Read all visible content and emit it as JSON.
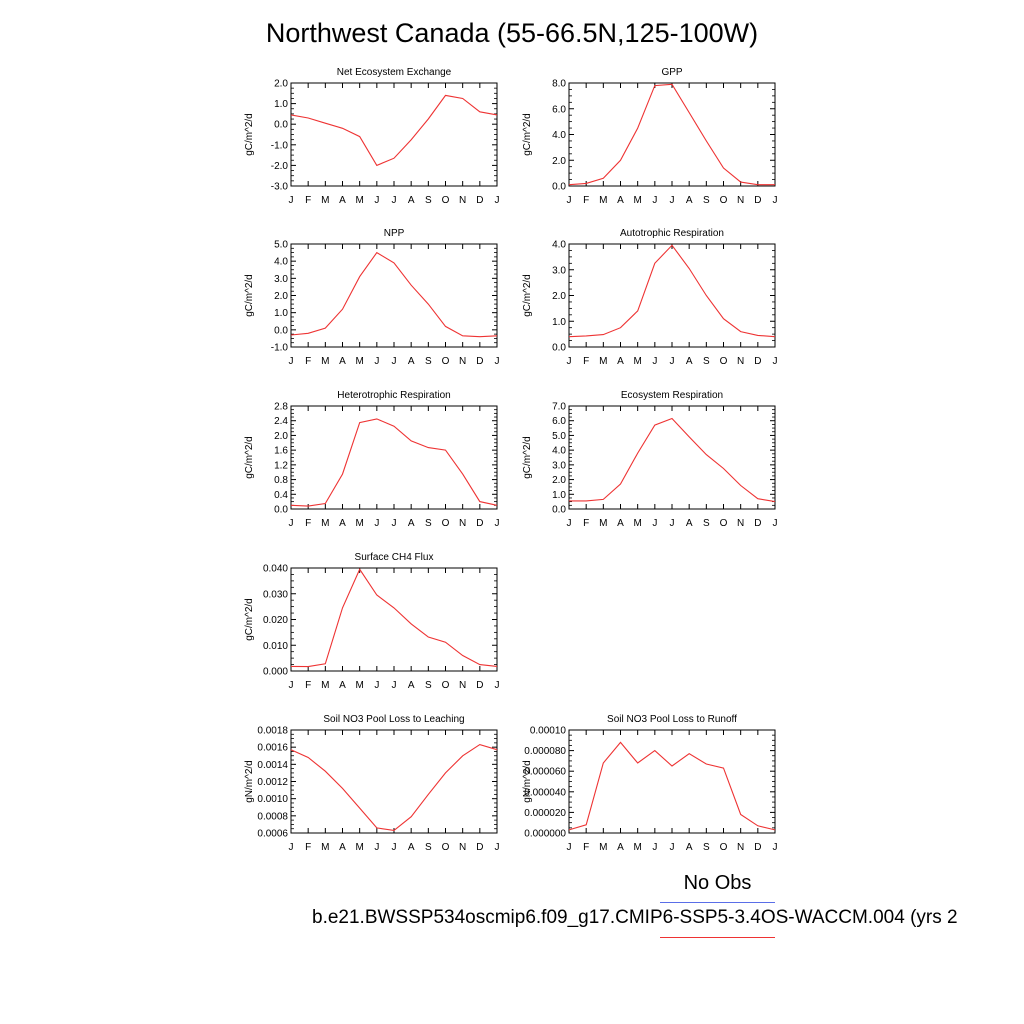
{
  "title": "Northwest Canada (55-66.5N,125-100W)",
  "legend": {
    "label": "No Obs",
    "obs_color": "#5a6ee8",
    "model_color": "#ee3333"
  },
  "case_label": "b.e21.BWSSP534oscmip6.f09_g17.CMIP6-SSP5-3.4OS-WACCM.004 (yrs 2",
  "months": [
    "J",
    "F",
    "M",
    "A",
    "M",
    "J",
    "J",
    "A",
    "S",
    "O",
    "N",
    "D",
    "J"
  ],
  "chart_data": [
    {
      "type": "line",
      "title": "Net Ecosystem Exchange",
      "ylabel": "gC/m^2/d",
      "ylim": [
        -3.0,
        2.0
      ],
      "yticks": [
        2.0,
        1.0,
        0.0,
        -1.0,
        -2.0,
        -3.0
      ],
      "yticklabels": [
        "2.0",
        "1.0",
        "0.0",
        "-1.0",
        "-2.0",
        "-3.0"
      ],
      "values": [
        0.45,
        0.3,
        0.05,
        -0.2,
        -0.6,
        -2.0,
        -1.65,
        -0.75,
        0.25,
        1.4,
        1.25,
        0.6,
        0.45
      ]
    },
    {
      "type": "line",
      "title": "GPP",
      "ylabel": "gC/m^2/d",
      "ylim": [
        0.0,
        8.0
      ],
      "yticks": [
        8.0,
        6.0,
        4.0,
        2.0,
        0.0
      ],
      "yticklabels": [
        "8.0",
        "6.0",
        "4.0",
        "2.0",
        "0.0"
      ],
      "values": [
        0.1,
        0.2,
        0.6,
        2.0,
        4.5,
        7.8,
        7.9,
        5.7,
        3.5,
        1.4,
        0.3,
        0.1,
        0.1
      ]
    },
    {
      "type": "line",
      "title": "NPP",
      "ylabel": "gC/m^2/d",
      "ylim": [
        -1.0,
        5.0
      ],
      "yticks": [
        5.0,
        4.0,
        3.0,
        2.0,
        1.0,
        0.0,
        -1.0
      ],
      "yticklabels": [
        "5.0",
        "4.0",
        "3.0",
        "2.0",
        "1.0",
        "0.0",
        "-1.0"
      ],
      "values": [
        -0.3,
        -0.2,
        0.1,
        1.2,
        3.1,
        4.5,
        3.9,
        2.6,
        1.5,
        0.2,
        -0.35,
        -0.4,
        -0.35
      ]
    },
    {
      "type": "line",
      "title": "Autotrophic Respiration",
      "ylabel": "gC/m^2/d",
      "ylim": [
        0.0,
        4.0
      ],
      "yticks": [
        4.0,
        3.0,
        2.0,
        1.0,
        0.0
      ],
      "yticklabels": [
        "4.0",
        "3.0",
        "2.0",
        "1.0",
        "0.0"
      ],
      "values": [
        0.4,
        0.43,
        0.48,
        0.75,
        1.4,
        3.25,
        3.95,
        3.05,
        2.0,
        1.1,
        0.6,
        0.45,
        0.4
      ]
    },
    {
      "type": "line",
      "title": "Heterotrophic Respiration",
      "ylabel": "gC/m^2/d",
      "ylim": [
        0.0,
        2.8
      ],
      "yticks": [
        2.8,
        2.4,
        2.0,
        1.6,
        1.2,
        0.8,
        0.4,
        0.0
      ],
      "yticklabels": [
        "2.8",
        "2.4",
        "2.0",
        "1.6",
        "1.2",
        "0.8",
        "0.4",
        "0.0"
      ],
      "values": [
        0.1,
        0.08,
        0.15,
        0.95,
        2.35,
        2.45,
        2.25,
        1.85,
        1.67,
        1.6,
        0.95,
        0.2,
        0.1
      ]
    },
    {
      "type": "line",
      "title": "Ecosystem Respiration",
      "ylabel": "gC/m^2/d",
      "ylim": [
        0.0,
        7.0
      ],
      "yticks": [
        7.0,
        6.0,
        5.0,
        4.0,
        3.0,
        2.0,
        1.0,
        0.0
      ],
      "yticklabels": [
        "7.0",
        "6.0",
        "5.0",
        "4.0",
        "3.0",
        "2.0",
        "1.0",
        "0.0"
      ],
      "values": [
        0.55,
        0.55,
        0.65,
        1.7,
        3.8,
        5.7,
        6.15,
        4.9,
        3.7,
        2.75,
        1.6,
        0.7,
        0.5
      ]
    },
    {
      "type": "line",
      "title": "Surface CH4 Flux",
      "ylabel": "gC/m^2/d",
      "ylim": [
        0.0,
        0.04
      ],
      "yticks": [
        0.04,
        0.03,
        0.02,
        0.01,
        0.0
      ],
      "yticklabels": [
        "0.040",
        "0.030",
        "0.020",
        "0.010",
        "0.000"
      ],
      "values": [
        0.0018,
        0.0017,
        0.0028,
        0.0245,
        0.0395,
        0.0295,
        0.0245,
        0.0183,
        0.0132,
        0.0112,
        0.006,
        0.0025,
        0.0018
      ]
    },
    {
      "type": "line",
      "title": "Soil NO3 Pool Loss to Leaching",
      "ylabel": "gN/m^2/d",
      "ylim": [
        0.0006,
        0.0018
      ],
      "yticks": [
        0.0018,
        0.0016,
        0.0014,
        0.0012,
        0.001,
        0.0008,
        0.0006
      ],
      "yticklabels": [
        "0.0018",
        "0.0016",
        "0.0014",
        "0.0012",
        "0.0010",
        "0.0008",
        "0.0006"
      ],
      "values": [
        0.00157,
        0.00148,
        0.00132,
        0.00112,
        0.00089,
        0.00066,
        0.00063,
        0.00079,
        0.00105,
        0.0013,
        0.0015,
        0.00163,
        0.00157
      ]
    },
    {
      "type": "line",
      "title": "Soil NO3 Pool Loss to Runoff",
      "ylabel": "gN/m^2/d",
      "ylim": [
        0.0,
        0.0001
      ],
      "yticks": [
        0.0001,
        8e-05,
        6e-05,
        4e-05,
        2e-05,
        0.0
      ],
      "yticklabels": [
        "0.00010",
        "0.000080",
        "0.000060",
        "0.000040",
        "0.000020",
        "0.000000"
      ],
      "values": [
        3e-06,
        8e-06,
        6.8e-05,
        8.8e-05,
        6.8e-05,
        8e-05,
        6.5e-05,
        7.7e-05,
        6.7e-05,
        6.3e-05,
        1.8e-05,
        7e-06,
        3e-06
      ]
    }
  ]
}
